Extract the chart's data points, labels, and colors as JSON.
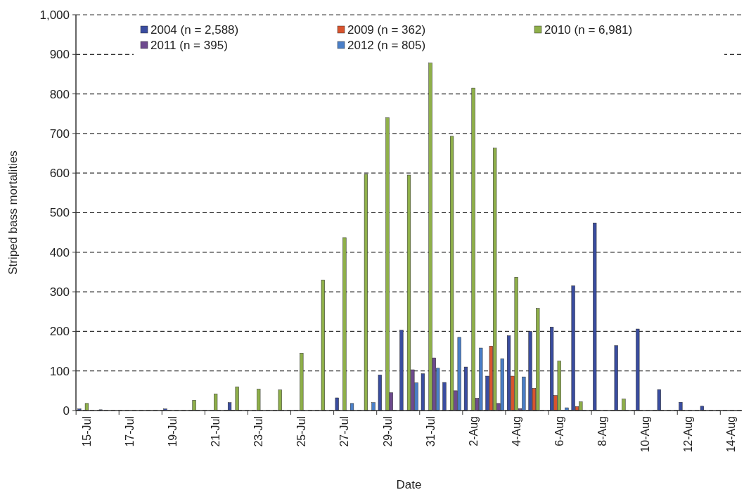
{
  "chart_data": {
    "type": "bar",
    "xlabel": "Date",
    "ylabel": "Striped bass mortalities",
    "categories": [
      "15-Jul",
      null,
      "17-Jul",
      null,
      "19-Jul",
      null,
      "21-Jul",
      null,
      "23-Jul",
      null,
      "25-Jul",
      null,
      "27-Jul",
      null,
      "29-Jul",
      null,
      "31-Jul",
      null,
      "2-Aug",
      null,
      "4-Aug",
      null,
      "6-Aug",
      null,
      "8-Aug",
      null,
      "10-Aug",
      null,
      "12-Aug",
      null,
      "14-Aug"
    ],
    "series": [
      {
        "name": "2004 (n = 2,588)",
        "color": "#3a4da0",
        "values": [
          4,
          2,
          null,
          null,
          4,
          null,
          null,
          20,
          null,
          null,
          null,
          null,
          32,
          null,
          90,
          203,
          93,
          71,
          110,
          87,
          189,
          200,
          211,
          315,
          474,
          164,
          206,
          53,
          21,
          11,
          null
        ]
      },
      {
        "name": "2009 (n = 362)",
        "color": "#d9542e",
        "values": [
          null,
          null,
          null,
          null,
          null,
          null,
          null,
          null,
          null,
          null,
          null,
          null,
          null,
          null,
          null,
          null,
          null,
          null,
          null,
          163,
          87,
          56,
          38,
          10,
          null,
          null,
          null,
          null,
          null,
          null,
          null
        ]
      },
      {
        "name": "2010 (n = 6,981)",
        "color": "#8fb04a",
        "values": [
          18,
          null,
          null,
          null,
          null,
          26,
          42,
          60,
          54,
          52,
          145,
          330,
          437,
          597,
          740,
          595,
          878,
          693,
          815,
          663,
          337,
          258,
          125,
          22,
          null,
          29,
          null,
          null,
          null,
          null,
          null
        ]
      },
      {
        "name": "2011 (n = 395)",
        "color": "#6e4a8e",
        "values": [
          null,
          null,
          null,
          null,
          null,
          null,
          null,
          null,
          null,
          null,
          null,
          null,
          null,
          null,
          45,
          103,
          133,
          50,
          31,
          18,
          5,
          null,
          null,
          null,
          null,
          null,
          null,
          null,
          null,
          null,
          null
        ]
      },
      {
        "name": "2012 (n = 805)",
        "color": "#4a7fc8",
        "values": [
          null,
          null,
          null,
          null,
          null,
          null,
          null,
          null,
          null,
          null,
          null,
          null,
          18,
          20,
          null,
          70,
          107,
          185,
          158,
          131,
          85,
          null,
          7,
          null,
          null,
          null,
          null,
          null,
          null,
          null,
          null
        ]
      }
    ],
    "ylim": [
      0,
      1000
    ],
    "yticks": [
      0,
      100,
      200,
      300,
      400,
      500,
      600,
      700,
      800,
      900,
      {
        "value": 1000,
        "label": "1,000"
      }
    ],
    "grid": "y",
    "legend": "top"
  }
}
